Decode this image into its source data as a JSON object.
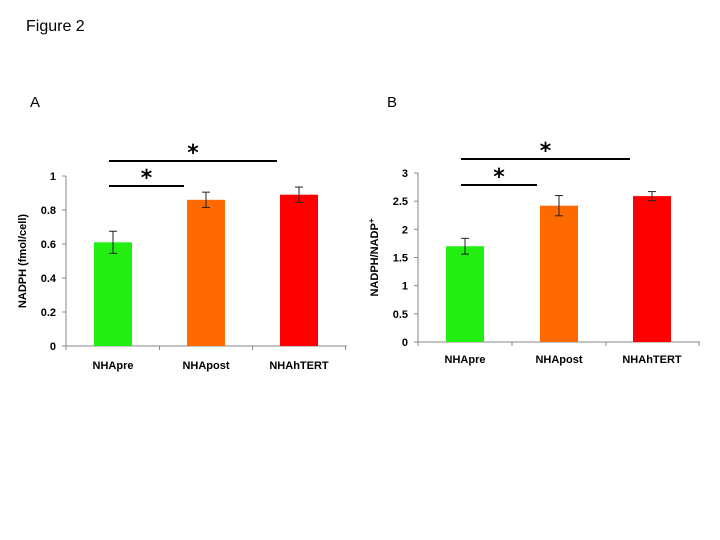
{
  "figure": {
    "title": "Figure 2"
  },
  "colors": {
    "NHApre": "#22ee11",
    "NHApost": "#ff6a00",
    "NHAhTERT": "#ff0000"
  },
  "chart_data": [
    {
      "panel": "A",
      "type": "bar",
      "categories": [
        "NHApre",
        "NHApost",
        "NHAhTERT"
      ],
      "values": [
        0.61,
        0.86,
        0.89
      ],
      "errors": [
        0.065,
        0.045,
        0.045
      ],
      "ylabel": "NADPH (fmol/cell)",
      "ylim": [
        0,
        1
      ],
      "yticks": [
        0,
        0.2,
        0.4,
        0.6,
        0.8,
        1
      ],
      "ytick_labels": [
        "0",
        "0.2",
        "0.4",
        "0.6",
        "0.8",
        "1"
      ],
      "significance": [
        {
          "from": "NHApre",
          "to": "NHApost",
          "label": "*"
        },
        {
          "from": "NHApre",
          "to": "NHAhTERT",
          "label": "*"
        }
      ]
    },
    {
      "panel": "B",
      "type": "bar",
      "categories": [
        "NHApre",
        "NHApost",
        "NHAhTERT"
      ],
      "values": [
        1.7,
        2.42,
        2.59
      ],
      "errors": [
        0.14,
        0.18,
        0.08
      ],
      "ylabel": "NADPH/NADP",
      "ylabel_sup": "+",
      "ylim": [
        0,
        3
      ],
      "yticks": [
        0,
        0.5,
        1,
        1.5,
        2,
        2.5,
        3
      ],
      "ytick_labels": [
        "0",
        "0.5",
        "1",
        "1.5",
        "2",
        "2.5",
        "3"
      ],
      "significance": [
        {
          "from": "NHApre",
          "to": "NHApost",
          "label": "*"
        },
        {
          "from": "NHApre",
          "to": "NHAhTERT",
          "label": "*"
        }
      ]
    }
  ]
}
